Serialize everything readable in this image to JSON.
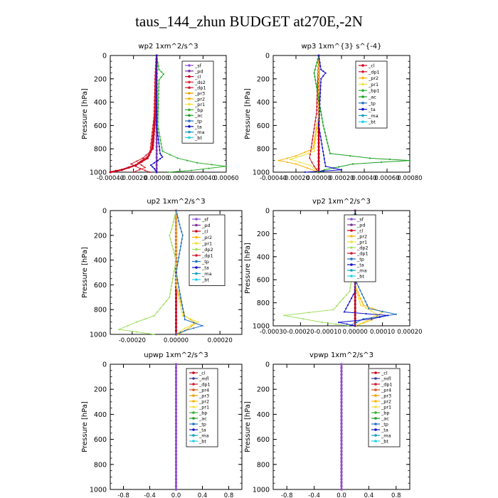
{
  "figure": {
    "title": "taus_144_zhun  BUDGET at270E,-2N"
  },
  "colors": {
    "sf": "#8a4fd8",
    "pd": "#7a2f9a",
    "cl": "#c8001c",
    "ds2": "#e0242c",
    "dp1": "#d01830",
    "pr3": "#f0a000",
    "pr2": "#ffb400",
    "pr1": "#f0e040",
    "pr4": "#e05020",
    "bp": "#30b030",
    "ac": "#1aa020",
    "tp": "#1e6fc0",
    "ta": "#1010c8",
    "ma": "#10a0c0",
    "bt": "#20d0e8",
    "dp2": "#a0e060",
    "mfl": "#3a3a9a"
  },
  "chart_data": [
    {
      "type": "line",
      "title": "wp2   1xm^2/s^3",
      "ylabel": "Pressure [hPa]",
      "ylim": [
        1000,
        0
      ],
      "xlim": [
        -0.0004,
        0.0006
      ],
      "xticks": [
        "-0.00040",
        "-0.00020",
        "0.00000",
        "0.00020",
        "0.00040",
        "0.00060"
      ],
      "yticks": [
        "0",
        "200",
        "400",
        "600",
        "800",
        "1000"
      ],
      "legend_position": "top-right",
      "legend": [
        "_sf",
        "_pd",
        "_cl",
        "_ds2",
        "_dp1",
        "_pr3",
        "_pr2",
        "_pr1",
        "_bp",
        "_ac",
        "_tp",
        "_ta",
        "_ma",
        "_bt"
      ],
      "series": [
        {
          "name": "_sf",
          "color_key": "sf",
          "points": [
            [
              0,
              0
            ],
            [
              0,
              500
            ],
            [
              0,
              1000
            ]
          ]
        },
        {
          "name": "_pd",
          "color_key": "pd",
          "points": [
            [
              0,
              0
            ],
            [
              0,
              500
            ],
            [
              0,
              1000
            ]
          ]
        },
        {
          "name": "_cl",
          "color_key": "cl",
          "points": [
            [
              0,
              0
            ],
            [
              -1e-05,
              200
            ],
            [
              -2e-05,
              600
            ],
            [
              -4e-05,
              800
            ],
            [
              -8e-05,
              880
            ],
            [
              -0.00018,
              940
            ],
            [
              -0.0003,
              980
            ],
            [
              -0.0004,
              1000
            ]
          ]
        },
        {
          "name": "_ds2",
          "color_key": "ds2",
          "points": [
            [
              0,
              0
            ],
            [
              -2e-05,
              500
            ],
            [
              -6e-05,
              850
            ],
            [
              -0.00016,
              920
            ],
            [
              -0.0001,
              960
            ],
            [
              -0.0002,
              1000
            ]
          ]
        },
        {
          "name": "_dp1",
          "color_key": "dp1",
          "points": [
            [
              0,
              0
            ],
            [
              0,
              400
            ],
            [
              -3e-05,
              800
            ],
            [
              -0.00012,
              880
            ],
            [
              -0.00022,
              930
            ],
            [
              -0.00014,
              970
            ],
            [
              -6e-05,
              1000
            ]
          ]
        },
        {
          "name": "_bp",
          "color_key": "bp",
          "points": [
            [
              0,
              0
            ],
            [
              2e-05,
              120
            ],
            [
              6e-05,
              160
            ],
            [
              2e-05,
              210
            ],
            [
              1e-05,
              600
            ],
            [
              5e-05,
              820
            ],
            [
              0.00018,
              880
            ],
            [
              0.00035,
              920
            ],
            [
              0.0006,
              950
            ],
            [
              0.0003,
              985
            ],
            [
              0.0001,
              1000
            ]
          ]
        },
        {
          "name": "_ta",
          "color_key": "ta",
          "points": [
            [
              0,
              0
            ],
            [
              0,
              600
            ],
            [
              3e-05,
              840
            ],
            [
              5e-05,
              870
            ],
            [
              1e-05,
              900
            ],
            [
              -5e-05,
              940
            ],
            [
              -2e-05,
              970
            ],
            [
              0,
              1000
            ]
          ]
        }
      ]
    },
    {
      "type": "line",
      "title": "wp3   1xm^{3} s^{-4}",
      "ylabel": "Pressure [hPa]",
      "ylim": [
        1000,
        0
      ],
      "xlim": [
        -0.0004,
        0.0008
      ],
      "xticks": [
        "-0.00040",
        "-0.00020",
        "0.00000",
        "0.00020",
        "0.00040",
        "0.00060",
        "0.00080"
      ],
      "yticks": [
        "0",
        "200",
        "400",
        "600",
        "800",
        "1000"
      ],
      "legend_position": "top-right",
      "legend": [
        "_cl",
        "_dp1",
        "_pr2",
        "_pr1",
        "_bp1",
        "_ac",
        "_tp",
        "_ta",
        "_ma",
        "_bt"
      ],
      "series": [
        {
          "name": "_cl",
          "color_key": "cl",
          "points": [
            [
              0,
              0
            ],
            [
              0,
              500
            ],
            [
              0,
              1000
            ]
          ]
        },
        {
          "name": "_dp1",
          "color_key": "dp1",
          "points": [
            [
              0,
              0
            ],
            [
              -2e-05,
              500
            ],
            [
              -8e-05,
              880
            ],
            [
              -4e-05,
              950
            ],
            [
              0,
              1000
            ]
          ]
        },
        {
          "name": "_pr2",
          "color_key": "pr2",
          "points": [
            [
              0,
              0
            ],
            [
              0,
              500
            ],
            [
              -5e-05,
              800
            ],
            [
              -0.0002,
              860
            ],
            [
              -0.00035,
              900
            ],
            [
              -0.0002,
              930
            ],
            [
              0,
              1000
            ]
          ]
        },
        {
          "name": "_pr1",
          "color_key": "pr1",
          "points": [
            [
              0,
              0
            ],
            [
              0,
              500
            ],
            [
              -4e-05,
              820
            ],
            [
              -0.00015,
              860
            ],
            [
              -0.00025,
              890
            ],
            [
              -8e-05,
              940
            ],
            [
              0,
              1000
            ]
          ]
        },
        {
          "name": "_ac",
          "color_key": "ac",
          "points": [
            [
              0,
              0
            ],
            [
              -4e-05,
              150
            ],
            [
              4e-05,
              600
            ],
            [
              0.0001,
              840
            ],
            [
              0.00045,
              880
            ],
            [
              0.0008,
              900
            ],
            [
              0.0003,
              930
            ],
            [
              5e-05,
              980
            ],
            [
              0,
              1000
            ]
          ]
        },
        {
          "name": "_ta",
          "color_key": "ta",
          "points": [
            [
              0,
              0
            ],
            [
              2e-05,
              120
            ],
            [
              6e-05,
              150
            ],
            [
              2e-05,
              200
            ],
            [
              0,
              600
            ],
            [
              6e-05,
              950
            ],
            [
              0.0002,
              980
            ],
            [
              -0.00012,
              1000
            ]
          ]
        }
      ]
    },
    {
      "type": "line",
      "title": "up2   1xm^2/s^3",
      "ylabel": "Pressure [hPa]",
      "ylim": [
        1000,
        0
      ],
      "xlim": [
        -0.0003,
        0.0003
      ],
      "xticks": [
        "-0.00020",
        "0.00000",
        "0.00020"
      ],
      "yticks": [
        "0",
        "200",
        "400",
        "600",
        "800",
        "1000"
      ],
      "legend_position": "top-right",
      "legend": [
        "_sf",
        "_pd",
        "_cl",
        "_pr2",
        "_pr1",
        "_dp2",
        "_dp1",
        "_tp",
        "_ta",
        "_ma",
        "_bt"
      ],
      "series": [
        {
          "name": "_sf",
          "color_key": "cl",
          "points": [
            [
              0,
              0
            ],
            [
              0,
              500
            ],
            [
              0,
              1000
            ]
          ]
        },
        {
          "name": "_pr2",
          "color_key": "pr2",
          "points": [
            [
              0,
              0
            ],
            [
              0,
              600
            ],
            [
              4e-05,
              850
            ],
            [
              9e-05,
              910
            ],
            [
              5e-05,
              960
            ],
            [
              1e-05,
              1000
            ]
          ]
        },
        {
          "name": "_pr1",
          "color_key": "pr1",
          "points": [
            [
              0,
              0
            ],
            [
              0,
              600
            ],
            [
              3e-05,
              850
            ],
            [
              0.0001,
              900
            ],
            [
              4e-05,
              950
            ],
            [
              0,
              1000
            ]
          ]
        },
        {
          "name": "_dp2",
          "color_key": "dp2",
          "points": [
            [
              0,
              0
            ],
            [
              -2e-05,
              150
            ],
            [
              -3e-05,
              200
            ],
            [
              0,
              400
            ],
            [
              -3e-05,
              700
            ],
            [
              -0.0001,
              850
            ],
            [
              -0.00018,
              900
            ],
            [
              -0.00026,
              960
            ],
            [
              -0.0001,
              1000
            ]
          ]
        },
        {
          "name": "_tp",
          "color_key": "tp",
          "points": [
            [
              0,
              0
            ],
            [
              2e-05,
              140
            ],
            [
              3e-05,
              200
            ],
            [
              0,
              500
            ],
            [
              4e-05,
              880
            ],
            [
              0.00012,
              930
            ],
            [
              4e-05,
              970
            ],
            [
              0,
              1000
            ]
          ]
        }
      ]
    },
    {
      "type": "line",
      "title": "vp2   1xm^2/s^3",
      "ylabel": "Pressure [hPa]",
      "ylim": [
        1000,
        0
      ],
      "xlim": [
        -0.0003,
        0.0002
      ],
      "xticks": [
        "-0.00030",
        "-0.00020",
        "-0.00010",
        "0.00000",
        "0.00010",
        "0.00020"
      ],
      "yticks": [
        "0",
        "200",
        "400",
        "600",
        "800",
        "1000"
      ],
      "legend_position": "top-right",
      "legend": [
        "_sf",
        "_pd",
        "_cl",
        "_pr2",
        "_pr1",
        "_dp2",
        "_dp1",
        "_tp",
        "_ta",
        "_ma",
        "_bt"
      ],
      "series": [
        {
          "name": "_sf",
          "color_key": "cl",
          "points": [
            [
              0,
              0
            ],
            [
              0,
              500
            ],
            [
              0,
              1000
            ]
          ]
        },
        {
          "name": "_pr2",
          "color_key": "pr2",
          "points": [
            [
              0,
              0
            ],
            [
              0,
              650
            ],
            [
              3e-05,
              820
            ],
            [
              0.0001,
              880
            ],
            [
              6e-05,
              950
            ],
            [
              0,
              1000
            ]
          ]
        },
        {
          "name": "_pr1",
          "color_key": "pr1",
          "points": [
            [
              0,
              0
            ],
            [
              0,
              650
            ],
            [
              2e-05,
              820
            ],
            [
              8e-05,
              900
            ],
            [
              4e-05,
              960
            ],
            [
              0,
              1000
            ]
          ]
        },
        {
          "name": "_dp2",
          "color_key": "dp2",
          "points": [
            [
              0,
              0
            ],
            [
              -2e-05,
              150
            ],
            [
              -1e-05,
              220
            ],
            [
              0,
              400
            ],
            [
              -2e-05,
              700
            ],
            [
              -8e-05,
              860
            ],
            [
              -0.00026,
              910
            ],
            [
              -0.00012,
              970
            ],
            [
              -2e-05,
              1000
            ]
          ]
        },
        {
          "name": "_tp",
          "color_key": "tp",
          "points": [
            [
              0,
              0
            ],
            [
              1e-05,
              150
            ],
            [
              2e-05,
              200
            ],
            [
              0,
              600
            ],
            [
              5e-05,
              850
            ],
            [
              0.00015,
              900
            ],
            [
              3e-05,
              940
            ],
            [
              -2e-05,
              1000
            ]
          ]
        },
        {
          "name": "_ta",
          "color_key": "ta",
          "points": [
            [
              0,
              0
            ],
            [
              0,
              700
            ],
            [
              -4e-05,
              880
            ],
            [
              0.00012,
              910
            ],
            [
              6e-05,
              940
            ],
            [
              -6e-05,
              970
            ],
            [
              0,
              1000
            ]
          ]
        }
      ]
    },
    {
      "type": "line",
      "title": "upwp   1xm^2/s^3",
      "ylabel": "Pressure [hPa]",
      "ylim": [
        1000,
        0
      ],
      "xlim": [
        -1,
        1
      ],
      "xticks": [
        "-0.8",
        "-0.4",
        "0.0",
        "0.4",
        "0.8"
      ],
      "yticks": [
        "0",
        "200",
        "400",
        "600",
        "800",
        "1000"
      ],
      "legend_position": "top-right",
      "legend": [
        "_cl",
        "_mfl",
        "_dp1",
        "_pr4",
        "_pr3",
        "_pr2",
        "_pr1",
        "_bp",
        "_ac",
        "_tp",
        "_ta",
        "_ma",
        "_bt"
      ],
      "series": [
        {
          "name": "_cl",
          "color_key": "cl",
          "points": [
            [
              0,
              0
            ],
            [
              0,
              500
            ],
            [
              0,
              1000
            ]
          ]
        },
        {
          "name": "_mfl",
          "color_key": "sf",
          "points": [
            [
              0,
              0
            ],
            [
              0,
              500
            ],
            [
              0,
              1000
            ]
          ]
        }
      ]
    },
    {
      "type": "line",
      "title": "vpwp   1xm^2/s^3",
      "ylabel": "Pressure [hPa]",
      "ylim": [
        1000,
        0
      ],
      "xlim": [
        -1,
        1
      ],
      "xticks": [
        "-0.8",
        "-0.4",
        "0.0",
        "0.4",
        "0.8"
      ],
      "yticks": [
        "0",
        "200",
        "400",
        "600",
        "800",
        "1000"
      ],
      "legend_position": "top-right",
      "legend": [
        "_cl",
        "_mfl",
        "_dp1",
        "_pr4",
        "_pr3",
        "_pr2",
        "_pr1",
        "_bp",
        "_ac",
        "_tp",
        "_ta",
        "_ma",
        "_bt"
      ],
      "series": [
        {
          "name": "_cl",
          "color_key": "cl",
          "points": [
            [
              0,
              0
            ],
            [
              0,
              500
            ],
            [
              0,
              1000
            ]
          ]
        },
        {
          "name": "_mfl",
          "color_key": "sf",
          "points": [
            [
              0,
              0
            ],
            [
              0,
              500
            ],
            [
              0,
              1000
            ]
          ]
        }
      ]
    }
  ]
}
